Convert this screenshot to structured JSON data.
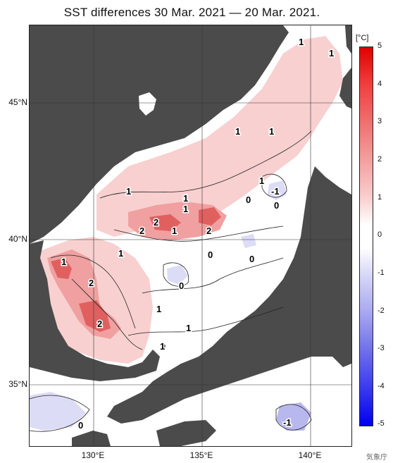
{
  "title": "SST differences 30 Mar. 2021 — 20 Mar. 2021.",
  "unit": "[°C]",
  "lat_labels": [
    "45°N",
    "40°N",
    "35°N"
  ],
  "lon_labels": [
    "130°E",
    "135°E",
    "140°E"
  ],
  "colorbar_ticks": [
    "5",
    "4",
    "3",
    "2",
    "1",
    "0",
    "-1",
    "-2",
    "-3",
    "-4",
    "-5"
  ],
  "colors": {
    "land": "#4b4b4b",
    "neutral_sea": "#ffffff",
    "warm_light": "#f8d0d0",
    "warm_mid": "#f0a0a0",
    "warm_strong": "#e06060",
    "cool_light": "#dcdcf6",
    "cool_mid": "#b8b8ee"
  },
  "contour_labels": [
    "1",
    "1",
    "1",
    "1",
    "1",
    "1",
    "-1",
    "0",
    "0",
    "1",
    "1",
    "2",
    "2",
    "1",
    "2",
    "1",
    "0",
    "0",
    "1",
    "2",
    "0",
    "1",
    "1",
    "2",
    "1",
    "0",
    "-1"
  ],
  "credit": "気象庁"
}
